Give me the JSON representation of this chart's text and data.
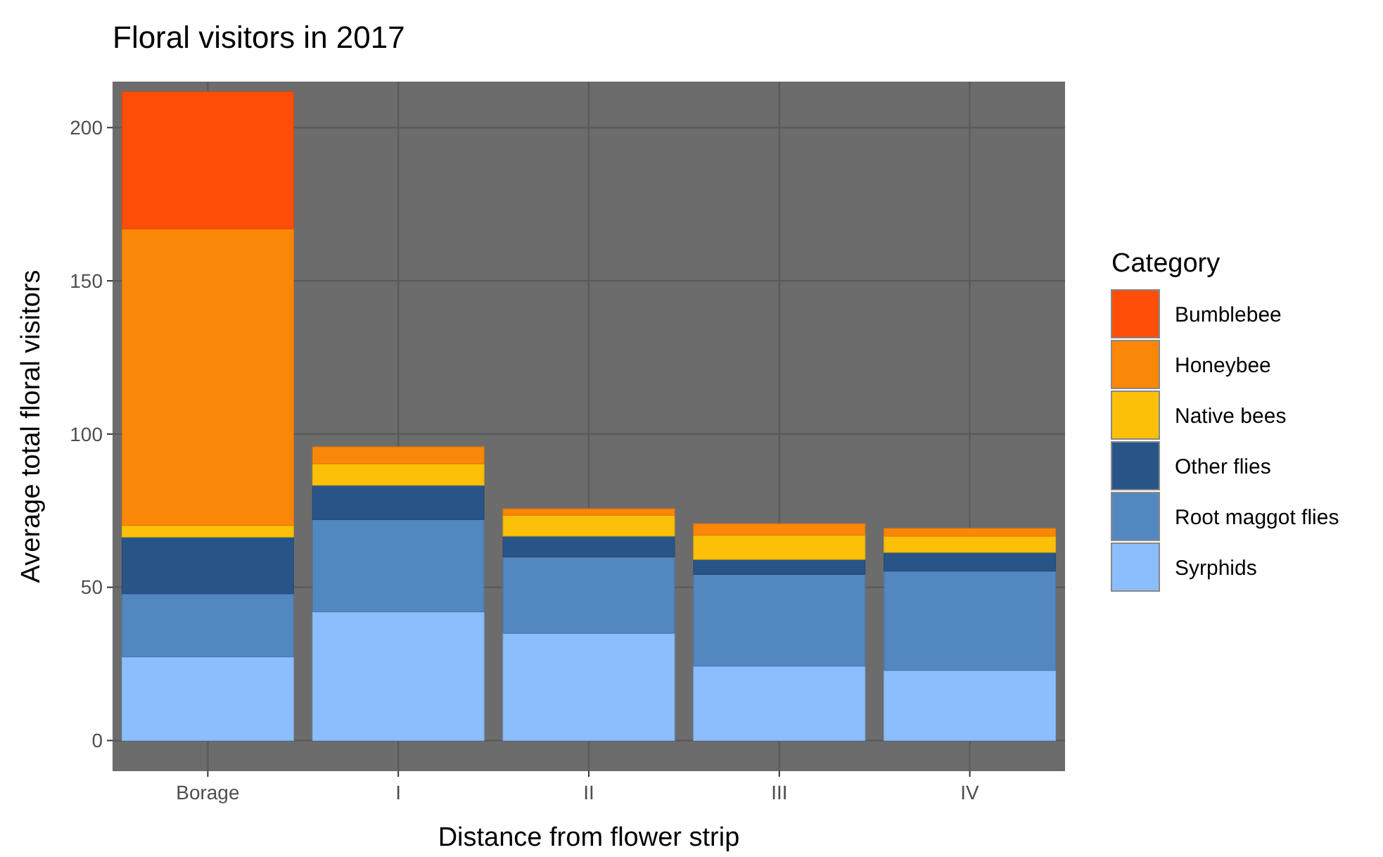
{
  "chart_data": {
    "type": "bar",
    "title": "Floral visitors in 2017",
    "xlabel": "Distance from flower strip",
    "ylabel": "Average total floral visitors",
    "legend_title": "Category",
    "categories": [
      "Borage",
      "I",
      "II",
      "III",
      "IV"
    ],
    "stacked": true,
    "ylim": [
      -10,
      215
    ],
    "yticks": [
      0,
      50,
      100,
      150,
      200
    ],
    "grid": true,
    "legend": "right",
    "series": [
      {
        "name": "Syrphids",
        "color": "#8cbefd",
        "values": [
          27.3,
          42.0,
          35.0,
          24.3,
          22.9
        ]
      },
      {
        "name": "Root maggot flies",
        "color": "#5387c0",
        "values": [
          20.6,
          30.1,
          24.9,
          29.9,
          32.4
        ]
      },
      {
        "name": "Other flies",
        "color": "#285488",
        "values": [
          18.5,
          11.2,
          6.8,
          4.9,
          6.1
        ]
      },
      {
        "name": "Native bees",
        "color": "#fcc008",
        "values": [
          3.8,
          7.0,
          6.8,
          7.9,
          5.3
        ]
      },
      {
        "name": "Honeybee",
        "color": "#fb8708",
        "values": [
          96.8,
          5.5,
          2.1,
          3.7,
          2.5
        ]
      },
      {
        "name": "Bumblebee",
        "color": "#fc4e08",
        "values": [
          44.7,
          0,
          0,
          0,
          0
        ]
      }
    ]
  }
}
